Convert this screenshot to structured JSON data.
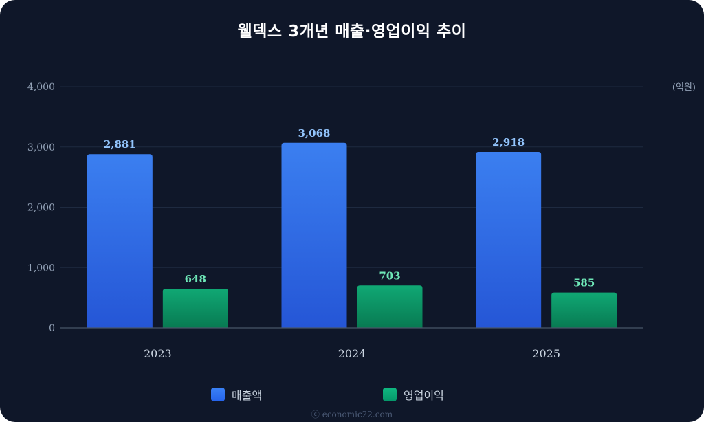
{
  "chart_data": {
    "type": "bar",
    "title": "웰덱스 3개년 매출·영업이익 추이",
    "unit_label": "(억원)",
    "categories": [
      "2023",
      "2024",
      "2025"
    ],
    "series": [
      {
        "name": "매출액",
        "values": [
          2881,
          3068,
          2918
        ],
        "labels": [
          "2,881",
          "3,068",
          "2,918"
        ],
        "color": "#3b82f6",
        "label_color": "#93c5fd"
      },
      {
        "name": "영업이익",
        "values": [
          648,
          703,
          585
        ],
        "labels": [
          "648",
          "703",
          "585"
        ],
        "color": "#10b981",
        "label_color": "#6ee7b7"
      }
    ],
    "ylim": [
      0,
      4000
    ],
    "yticks": [
      0,
      1000,
      2000,
      3000,
      4000
    ],
    "ytick_labels": [
      "0",
      "1,000",
      "2,000",
      "3,000",
      "4,000"
    ],
    "grid": true,
    "legend_position": "bottom-center"
  },
  "footer_text": "ⓒ economic22.com"
}
